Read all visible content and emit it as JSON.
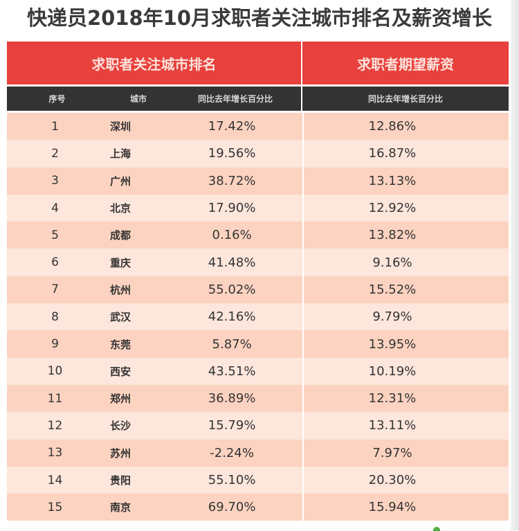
{
  "title": "快递员2018年10月求职者关注城市排名及薪资增长",
  "header": {
    "left_group": "求职者关注城市排名",
    "right_group": "求职者期望薪资",
    "columns": [
      "序号",
      "城市",
      "同比去年增长百分比",
      "同比去年增长百分比"
    ]
  },
  "colors": {
    "header_red": "#e8403c",
    "header_dark": "#333333",
    "row_odd": "#fcd3c0",
    "row_even": "#fde6dc"
  },
  "rows": [
    {
      "rank": "1",
      "city": "深圳",
      "attention_growth": "17.42%",
      "salary_growth": "12.86%"
    },
    {
      "rank": "2",
      "city": "上海",
      "attention_growth": "19.56%",
      "salary_growth": "16.87%"
    },
    {
      "rank": "3",
      "city": "广州",
      "attention_growth": "38.72%",
      "salary_growth": "13.13%"
    },
    {
      "rank": "4",
      "city": "北京",
      "attention_growth": "17.90%",
      "salary_growth": "12.92%"
    },
    {
      "rank": "5",
      "city": "成都",
      "attention_growth": "0.16%",
      "salary_growth": "13.82%"
    },
    {
      "rank": "6",
      "city": "重庆",
      "attention_growth": "41.48%",
      "salary_growth": "9.16%"
    },
    {
      "rank": "7",
      "city": "杭州",
      "attention_growth": "55.02%",
      "salary_growth": "15.52%"
    },
    {
      "rank": "8",
      "city": "武汉",
      "attention_growth": "42.16%",
      "salary_growth": "9.79%"
    },
    {
      "rank": "9",
      "city": "东莞",
      "attention_growth": "5.87%",
      "salary_growth": "13.95%"
    },
    {
      "rank": "10",
      "city": "西安",
      "attention_growth": "43.51%",
      "salary_growth": "10.19%"
    },
    {
      "rank": "11",
      "city": "郑州",
      "attention_growth": "36.89%",
      "salary_growth": "12.31%"
    },
    {
      "rank": "12",
      "city": "长沙",
      "attention_growth": "15.79%",
      "salary_growth": "13.11%"
    },
    {
      "rank": "13",
      "city": "苏州",
      "attention_growth": "-2.24%",
      "salary_growth": "7.97%"
    },
    {
      "rank": "14",
      "city": "贵阳",
      "attention_growth": "55.10%",
      "salary_growth": "20.30%"
    },
    {
      "rank": "15",
      "city": "南京",
      "attention_growth": "69.70%",
      "salary_growth": "15.94%"
    }
  ]
}
